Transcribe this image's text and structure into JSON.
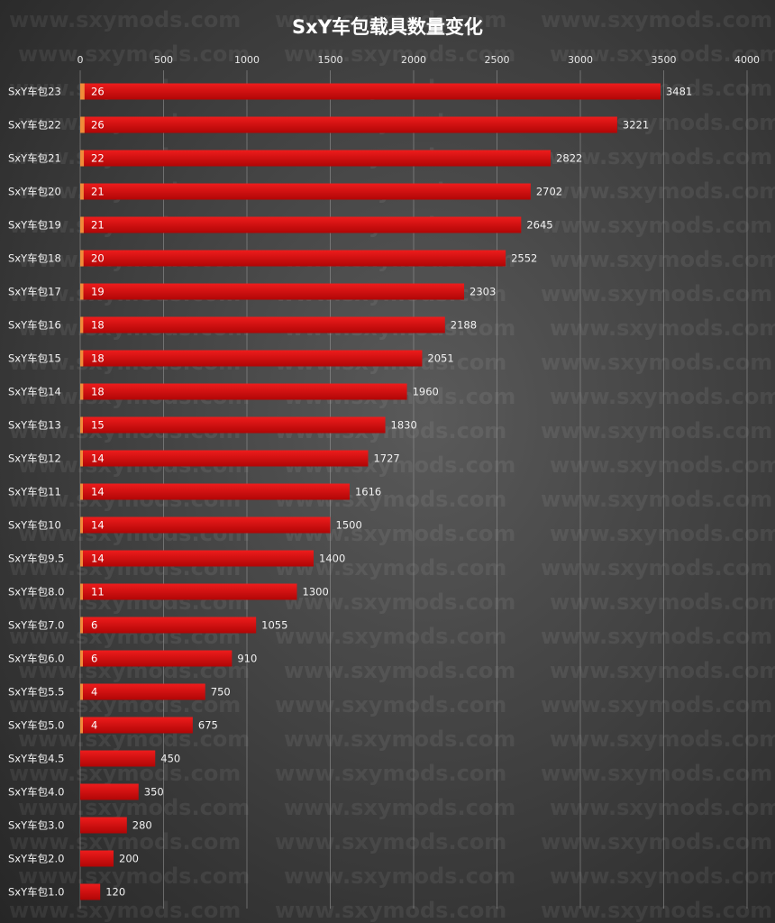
{
  "chart_data": {
    "type": "bar",
    "orientation": "horizontal",
    "title": "SxY车包载具数量变化",
    "xlim": [
      0,
      4000
    ],
    "xticks": [
      0,
      500,
      1000,
      1500,
      2000,
      2500,
      3000,
      3500,
      4000
    ],
    "grid": true,
    "categories": [
      "SxY车包23",
      "SxY车包22",
      "SxY车包21",
      "SxY车包20",
      "SxY车包19",
      "SxY车包18",
      "SxY车包17",
      "SxY车包16",
      "SxY车包15",
      "SxY车包14",
      "SxY车包13",
      "SxY车包12",
      "SxY车包11",
      "SxY车包10",
      "SxY车包9.5",
      "SxY车包8.0",
      "SxY车包7.0",
      "SxY车包6.0",
      "SxY车包5.5",
      "SxY车包5.0",
      "SxY车包4.5",
      "SxY车包4.0",
      "SxY车包3.0",
      "SxY车包2.0",
      "SxY车包1.0"
    ],
    "series": [
      {
        "values": [
          3481,
          3221,
          2822,
          2702,
          2645,
          2552,
          2303,
          2188,
          2051,
          1960,
          1830,
          1727,
          1616,
          1500,
          1400,
          1300,
          1055,
          910,
          750,
          675,
          450,
          350,
          280,
          200,
          120
        ],
        "color": "#d90a0a"
      },
      {
        "values": [
          26,
          26,
          22,
          21,
          21,
          20,
          19,
          18,
          18,
          18,
          15,
          14,
          14,
          14,
          14,
          11,
          6,
          6,
          4,
          4,
          null,
          null,
          null,
          null,
          null
        ],
        "color": "#f08c3a"
      }
    ],
    "watermark": "www.sxymods.com"
  }
}
